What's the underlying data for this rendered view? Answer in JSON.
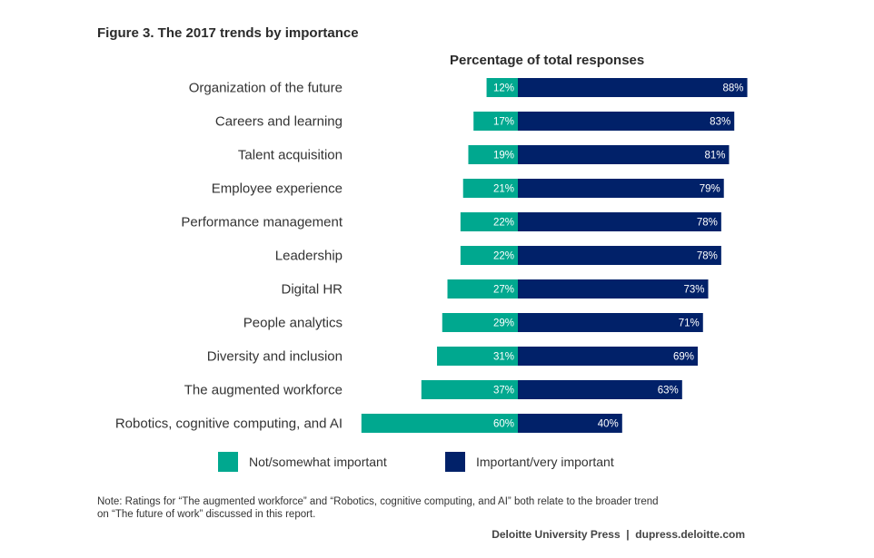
{
  "chart_data": {
    "type": "bar",
    "orientation": "horizontal-diverging-stacked",
    "title": "Figure 3. The 2017 trends by importance",
    "subtitle": "Percentage of total responses",
    "xlabel": "",
    "ylabel": "",
    "xlim": [
      0,
      100
    ],
    "grid": false,
    "legend_position": "bottom",
    "categories": [
      "Organization of the future",
      "Careers and learning",
      "Talent acquisition",
      "Employee experience",
      "Performance management",
      "Leadership",
      "Digital HR",
      "People analytics",
      "Diversity and inclusion",
      "The augmented workforce",
      "Robotics, cognitive computing, and AI"
    ],
    "series": [
      {
        "name": "Not/somewhat important",
        "color": "#00a88f",
        "values": [
          12,
          17,
          19,
          21,
          22,
          22,
          27,
          29,
          31,
          37,
          60
        ]
      },
      {
        "name": "Important/very important",
        "color": "#012169",
        "values": [
          88,
          83,
          81,
          79,
          78,
          78,
          73,
          71,
          69,
          63,
          40
        ]
      }
    ],
    "value_suffix": "%"
  },
  "note": {
    "line1": "Note: Ratings for “The augmented workforce” and “Robotics, cognitive computing, and AI” both relate to the broader trend",
    "line2": "on “The future of work” discussed in this report."
  },
  "source": "Deloitte University Press  |  dupress.deloitte.com"
}
